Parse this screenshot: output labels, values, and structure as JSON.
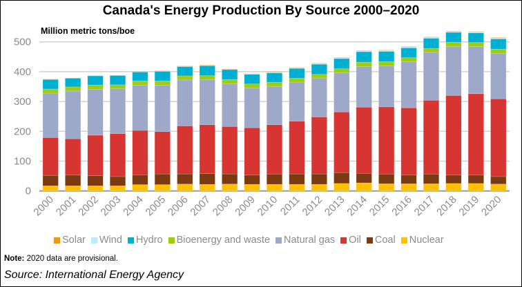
{
  "chart_data": {
    "type": "bar",
    "stacked": true,
    "title": "Canada's Energy Production By Source 2000–2020",
    "ylabel": "Million metric tons/boe",
    "xlabel": "",
    "ylim": [
      0,
      500
    ],
    "yticks": [
      0,
      100,
      200,
      300,
      400,
      500
    ],
    "grid": true,
    "legend_position": "bottom",
    "categories": [
      "2000",
      "2001",
      "2002",
      "2003",
      "2004",
      "2005",
      "2006",
      "2007",
      "2008",
      "2009",
      "2010",
      "2011",
      "2012",
      "2013",
      "2014",
      "2015",
      "2016",
      "2017",
      "2018",
      "2019",
      "2020"
    ],
    "series": [
      {
        "name": "Nuclear",
        "color": "#FFC000",
        "values": [
          17,
          17,
          17,
          17,
          21,
          21,
          23,
          22,
          23,
          22,
          22,
          22,
          22,
          25,
          27,
          24,
          24,
          24,
          25,
          25,
          23
        ]
      },
      {
        "name": "Coal",
        "color": "#7B3A12",
        "values": [
          35,
          36,
          34,
          31,
          33,
          36,
          34,
          36,
          34,
          31,
          34,
          35,
          35,
          36,
          32,
          32,
          29,
          32,
          28,
          28,
          25
        ]
      },
      {
        "name": "Oil",
        "color": "#D63532",
        "values": [
          127,
          122,
          136,
          144,
          149,
          142,
          161,
          164,
          159,
          159,
          166,
          177,
          191,
          204,
          222,
          226,
          226,
          248,
          267,
          273,
          261
        ]
      },
      {
        "name": "Natural gas",
        "color": "#9EA8C8",
        "values": [
          149,
          160,
          154,
          151,
          151,
          155,
          154,
          152,
          144,
          133,
          129,
          131,
          131,
          132,
          136,
          138,
          155,
          161,
          165,
          158,
          153
        ]
      },
      {
        "name": "Bioenergy and waste",
        "color": "#9FCB17",
        "values": [
          14,
          14,
          14,
          13,
          15,
          15,
          14,
          13,
          14,
          14,
          14,
          13,
          12,
          13,
          15,
          14,
          13,
          13,
          14,
          14,
          14
        ]
      },
      {
        "name": "Hydro",
        "color": "#00B0D2",
        "values": [
          32,
          29,
          31,
          31,
          30,
          32,
          31,
          33,
          33,
          32,
          31,
          33,
          34,
          34,
          35,
          34,
          33,
          34,
          33,
          32,
          34
        ]
      },
      {
        "name": "Wind",
        "color": "#BDEBFA",
        "values": [
          0.2,
          0.2,
          0.3,
          0.3,
          0.4,
          0.5,
          0.7,
          0.8,
          1,
          1,
          1.5,
          1.7,
          2,
          2.5,
          2.5,
          3,
          3,
          3,
          3,
          3,
          3
        ]
      },
      {
        "name": "Solar",
        "color": "#E59A1E",
        "values": [
          1,
          1,
          1,
          1,
          1.5,
          1.5,
          1.5,
          1.5,
          1.5,
          1.5,
          1.5,
          1.5,
          1.5,
          1.5,
          1.5,
          1.5,
          1.5,
          1.5,
          1.5,
          1.5,
          1.5
        ]
      }
    ]
  },
  "legend_order": [
    "Solar",
    "Wind",
    "Hydro",
    "Bioenergy and waste",
    "Natural gas",
    "Oil",
    "Coal",
    "Nuclear"
  ],
  "note": {
    "label": "Note:",
    "text": " 2020 data are provisional."
  },
  "source": "Source: International Energy Agency"
}
